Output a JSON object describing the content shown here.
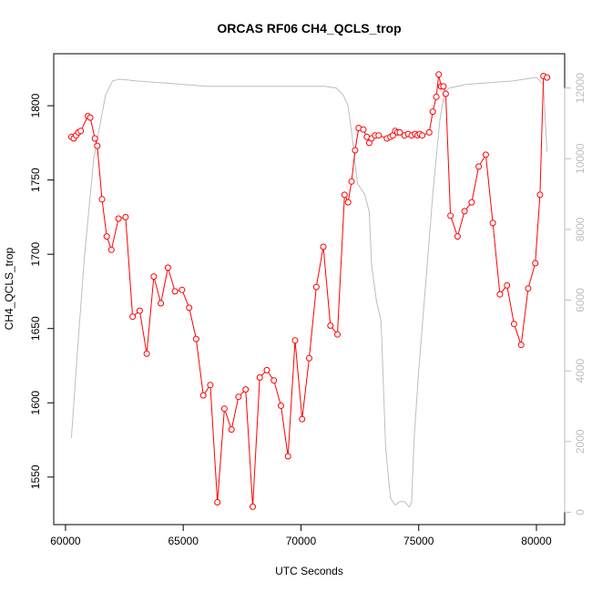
{
  "chart_data": {
    "type": "line",
    "title": "ORCAS RF06 CH4_QCLS_trop",
    "xlabel": "UTC Seconds",
    "ylabel": "CH4_QCLS_trop",
    "xlim": [
      59500,
      81200
    ],
    "ylim": [
      1518,
      1835
    ],
    "y2lim": [
      -350,
      12970
    ],
    "x_ticks": [
      60000,
      65000,
      70000,
      75000,
      80000
    ],
    "y_ticks": [
      1550,
      1600,
      1650,
      1700,
      1750,
      1800
    ],
    "y2_ticks": [
      0,
      2000,
      4000,
      6000,
      8000,
      10000,
      12000
    ],
    "grid": false,
    "legend": "none",
    "colors": {
      "primary": "#ff0000",
      "secondary": "#bebebe",
      "frame": "#000000"
    },
    "series": [
      {
        "axis": "left",
        "style": "line+points",
        "color": "#ff0000",
        "x": [
          60250,
          60350,
          60450,
          60550,
          60650,
          60950,
          61050,
          61250,
          61350,
          61550,
          61750,
          61950,
          62250,
          62550,
          62850,
          63150,
          63450,
          63750,
          64050,
          64350,
          64650,
          64950,
          65250,
          65550,
          65850,
          66150,
          66450,
          66750,
          67050,
          67350,
          67650,
          67950,
          68250,
          68550,
          68850,
          69150,
          69450,
          69750,
          70050,
          70350,
          70650,
          70950,
          71250,
          71550,
          71850,
          72000,
          72150,
          72300,
          72450,
          72650,
          72800,
          72900,
          73000,
          73150,
          73300,
          73650,
          73800,
          73900,
          74000,
          74100,
          74200,
          74400,
          74550,
          74700,
          74850,
          74950,
          75050,
          75150,
          75450,
          75600,
          75750,
          75850,
          75950,
          76050,
          76150,
          76350,
          76650,
          76950,
          77250,
          77550,
          77850,
          78150,
          78450,
          78750,
          79050,
          79350,
          79650,
          79950,
          80150,
          80300,
          80450
        ],
        "y": [
          1779,
          1778,
          1780,
          1782,
          1783,
          1793,
          1792,
          1778,
          1773,
          1737,
          1712,
          1703,
          1724,
          1725,
          1658,
          1662,
          1633,
          1685,
          1667,
          1691,
          1675,
          1676,
          1664,
          1643,
          1605,
          1612,
          1533,
          1596,
          1582,
          1604,
          1609,
          1530,
          1617,
          1622,
          1615,
          1598,
          1564,
          1642,
          1589,
          1630,
          1678,
          1705,
          1652,
          1646,
          1740,
          1735,
          1749,
          1770,
          1785,
          1784,
          1779,
          1775,
          1778,
          1780,
          1780,
          1778,
          1779,
          1780,
          1783,
          1782,
          1782,
          1780,
          1781,
          1780,
          1781,
          1780,
          1781,
          1780,
          1782,
          1796,
          1806,
          1821,
          1813,
          1813,
          1808,
          1726,
          1712,
          1729,
          1735,
          1759,
          1767,
          1721,
          1673,
          1679,
          1653,
          1639,
          1677,
          1694,
          1740,
          1820,
          1819
        ]
      },
      {
        "axis": "right",
        "style": "line",
        "color": "#bebebe",
        "x": [
          60250,
          60500,
          60800,
          61200,
          61700,
          62000,
          62300,
          63000,
          64000,
          65000,
          66000,
          67000,
          68000,
          69000,
          70000,
          71000,
          71500,
          71800,
          72000,
          72200,
          72400,
          72700,
          72900,
          73000,
          73200,
          73400,
          73600,
          73800,
          74000,
          74100,
          74200,
          74400,
          74600,
          74700,
          74800,
          75000,
          75300,
          75600,
          75900,
          76100,
          76300,
          77000,
          78000,
          79000,
          79500,
          80000,
          80300,
          80450
        ],
        "y": [
          2100,
          4500,
          7200,
          10000,
          11800,
          12200,
          12250,
          12200,
          12150,
          12100,
          12050,
          12050,
          12050,
          12050,
          12050,
          12050,
          12000,
          11800,
          11500,
          10500,
          9300,
          9000,
          8500,
          7000,
          6000,
          5400,
          1800,
          400,
          200,
          250,
          300,
          300,
          150,
          300,
          2000,
          4000,
          6500,
          9000,
          11100,
          11900,
          12000,
          12100,
          12150,
          12200,
          12250,
          12300,
          12100,
          10200
        ]
      }
    ]
  }
}
